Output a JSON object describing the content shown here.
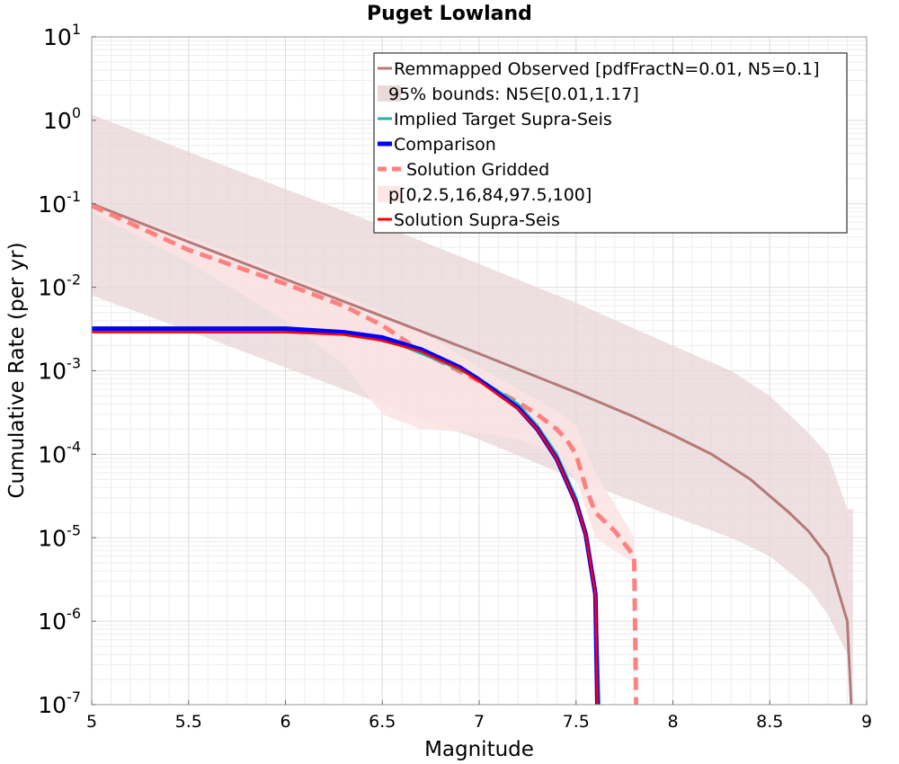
{
  "chart_data": {
    "type": "line",
    "title": "Puget Lowland",
    "xlabel": "Magnitude",
    "ylabel": "Cumulative Rate (per yr)",
    "xlim": [
      5,
      9
    ],
    "ylim_exponents": [
      -7,
      1
    ],
    "yscale": "log",
    "grid": true,
    "legend_position": "top-right",
    "x_ticks": [
      "5",
      "5.5",
      "6",
      "6.5",
      "7",
      "7.5",
      "8",
      "8.5",
      "9"
    ],
    "y_ticks": [
      {
        "base": "10",
        "exp": "-7"
      },
      {
        "base": "10",
        "exp": "-6"
      },
      {
        "base": "10",
        "exp": "-5"
      },
      {
        "base": "10",
        "exp": "-4"
      },
      {
        "base": "10",
        "exp": "-3"
      },
      {
        "base": "10",
        "exp": "-2"
      },
      {
        "base": "10",
        "exp": "-1"
      },
      {
        "base": "10",
        "exp": "0"
      },
      {
        "base": "10",
        "exp": "1"
      }
    ],
    "legend": [
      {
        "label": "Remmapped Observed [pdfFractN=0.01, N5=0.1]",
        "style": "line",
        "color": "#b47a7a"
      },
      {
        "label": "95% bounds: N5∈[0.01,1.17]",
        "style": "band",
        "color": "#e8d6d6"
      },
      {
        "label": "Implied Target Supra-Seis",
        "style": "line",
        "color": "#20b2aa"
      },
      {
        "label": "Comparison",
        "style": "thickline",
        "color": "#0000ff"
      },
      {
        "label": "Solution Gridded",
        "style": "dashed",
        "color": "#ff8080"
      },
      {
        "label": "p[0,2.5,16,84,97.5,100]",
        "style": "band",
        "color": "#fce3e3"
      },
      {
        "label": "Solution Supra-Seis",
        "style": "line",
        "color": "#ff0000"
      }
    ],
    "series": [
      {
        "name": "Remmapped Observed [pdfFractN=0.01, N5=0.1]",
        "color": "#b47a7a",
        "x": [
          5.0,
          5.5,
          6.0,
          6.5,
          7.0,
          7.5,
          7.8,
          8.0,
          8.2,
          8.4,
          8.6,
          8.7,
          8.8,
          8.9,
          8.92
        ],
        "y": [
          0.1,
          0.035,
          0.0125,
          0.0045,
          0.0016,
          0.00055,
          0.00028,
          0.00017,
          0.0001,
          5e-05,
          2e-05,
          1.2e-05,
          6e-06,
          1e-06,
          1e-07
        ]
      },
      {
        "name": "95% bounds: N5∈[0.01,1.17]",
        "color": "#e8d6d6",
        "x": [
          5.0,
          5.5,
          6.0,
          6.5,
          7.0,
          7.5,
          8.0,
          8.3,
          8.5,
          8.7,
          8.8,
          8.9,
          8.93
        ],
        "lower": [
          0.008,
          0.003,
          0.0011,
          0.0004,
          0.00015,
          5e-05,
          1.8e-05,
          1e-05,
          6e-06,
          2.5e-06,
          1.2e-06,
          4e-07,
          1e-07
        ],
        "upper": [
          1.17,
          0.42,
          0.15,
          0.055,
          0.019,
          0.0065,
          0.002,
          0.001,
          0.0005,
          0.00018,
          0.0001,
          2.2e-05,
          2.2e-05
        ]
      },
      {
        "name": "Implied Target Supra-Seis",
        "color": "#20b2aa",
        "x": [
          5.0,
          6.0,
          6.2,
          6.4,
          6.6,
          6.8,
          7.0,
          7.2,
          7.3,
          7.4,
          7.5,
          7.55,
          7.6,
          7.62
        ],
        "y": [
          0.003,
          0.003,
          0.0029,
          0.0026,
          0.002,
          0.0013,
          0.0008,
          0.0004,
          0.00022,
          0.0001,
          3e-05,
          1.2e-05,
          2.5e-06,
          1e-07
        ]
      },
      {
        "name": "Comparison",
        "color": "#0000ff",
        "x": [
          5.0,
          6.0,
          6.3,
          6.5,
          6.7,
          6.9,
          7.0,
          7.2,
          7.3,
          7.4,
          7.5,
          7.55,
          7.6,
          7.61
        ],
        "y": [
          0.0032,
          0.0032,
          0.0029,
          0.0025,
          0.0018,
          0.0011,
          0.00078,
          0.00036,
          0.0002,
          8.8e-05,
          2.6e-05,
          1.1e-05,
          2.1e-06,
          1e-07
        ]
      },
      {
        "name": "Solution Gridded",
        "color": "#ff8080",
        "x": [
          5.0,
          5.5,
          6.0,
          6.3,
          6.5,
          6.7,
          7.0,
          7.2,
          7.3,
          7.4,
          7.45,
          7.5,
          7.55,
          7.6,
          7.7,
          7.8,
          7.81
        ],
        "y": [
          0.095,
          0.028,
          0.011,
          0.006,
          0.0035,
          0.0017,
          0.00075,
          0.00042,
          0.0003,
          0.0002,
          0.00015,
          0.0001,
          4e-05,
          2e-05,
          1.2e-05,
          6e-06,
          1e-07
        ]
      },
      {
        "name": "p[0,2.5,16,84,97.5,100]",
        "color": "#fce3e3",
        "x": [
          5.0,
          5.5,
          6.0,
          6.3,
          6.5,
          6.7,
          7.0,
          7.2,
          7.4,
          7.5,
          7.6,
          7.7,
          7.8
        ],
        "lower": [
          0.08,
          0.02,
          0.004,
          0.0012,
          0.0003,
          0.0002,
          0.00018,
          0.00015,
          0.0001,
          5e-05,
          1e-05,
          7e-06,
          5e-06
        ],
        "upper": [
          0.1,
          0.04,
          0.014,
          0.008,
          0.005,
          0.003,
          0.0011,
          0.0006,
          0.00033,
          0.00022,
          6e-05,
          2.5e-05,
          1e-05
        ]
      },
      {
        "name": "Solution Supra-Seis",
        "color": "#ff0000",
        "x": [
          5.0,
          6.0,
          6.3,
          6.5,
          6.7,
          6.9,
          7.0,
          7.2,
          7.3,
          7.4,
          7.5,
          7.55,
          7.6,
          7.61
        ],
        "y": [
          0.0029,
          0.0029,
          0.0027,
          0.0023,
          0.0017,
          0.00105,
          0.00075,
          0.00035,
          0.0002,
          8.8e-05,
          2.6e-05,
          1.1e-05,
          2.1e-06,
          1e-07
        ]
      }
    ]
  }
}
